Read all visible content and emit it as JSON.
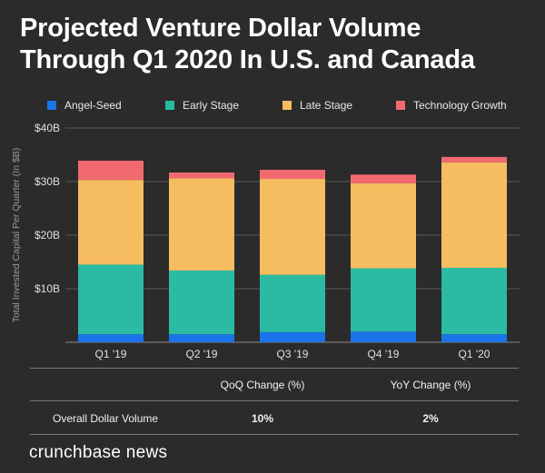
{
  "chart_data": {
    "type": "bar",
    "stacked": true,
    "title": "Projected Venture Dollar Volume Through Q1 2020 In U.S. and Canada",
    "title_lines": [
      "Projected Venture Dollar Volume",
      "Through Q1 2020 In U.S. and Canada"
    ],
    "ylabel": "Total Invested Capital Per Quarter (In $B)",
    "xlabel": "",
    "categories": [
      "Q1 '19",
      "Q2 '19",
      "Q3 '19",
      "Q4 '19",
      "Q1 '20"
    ],
    "ylim": [
      0,
      40
    ],
    "yticks": [
      10,
      20,
      30,
      40
    ],
    "ytick_labels": [
      "$10B",
      "$20B",
      "$30B",
      "$40B"
    ],
    "grid": true,
    "legend_position": "top",
    "series": [
      {
        "name": "Angel-Seed",
        "color": "#1a73e8",
        "values": [
          1.5,
          1.5,
          1.9,
          2.0,
          1.5
        ]
      },
      {
        "name": "Early Stage",
        "color": "#2bbba3",
        "values": [
          13.0,
          11.9,
          10.7,
          11.8,
          12.4
        ]
      },
      {
        "name": "Late Stage",
        "color": "#f6bd60",
        "values": [
          15.8,
          17.2,
          17.9,
          15.9,
          19.7
        ]
      },
      {
        "name": "Technology Growth",
        "color": "#f16a70",
        "values": [
          3.6,
          1.1,
          1.7,
          1.6,
          1.0
        ]
      }
    ]
  },
  "table": {
    "headers": [
      "QoQ Change (%)",
      "YoY Change (%)"
    ],
    "row_label": "Overall Dollar Volume",
    "values": [
      "10%",
      "2%"
    ]
  },
  "brand": "crunchbase news",
  "colors": {
    "background": "#2b2b2b",
    "grid": "#5a5a5a",
    "text": "#ffffff"
  }
}
